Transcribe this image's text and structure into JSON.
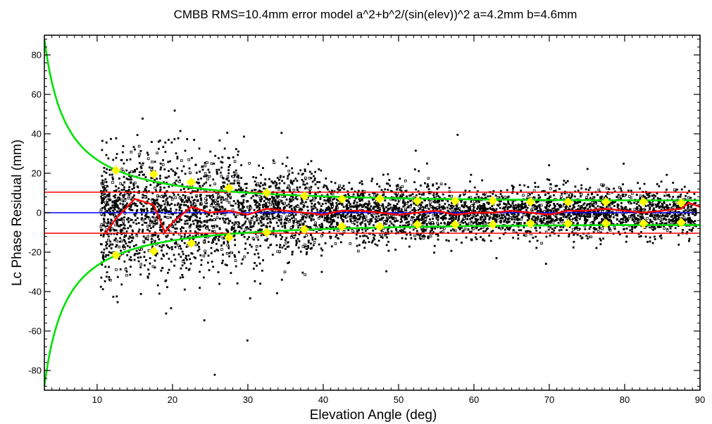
{
  "chart_data": {
    "type": "scatter",
    "title": "CMBB RMS=10.4mm error model a^2+b^2/(sin(elev))^2 a=4.2mm b=4.6mm",
    "xlabel": "Elevation Angle (deg)",
    "ylabel": "Lc Phase Residual (mm)",
    "xlim": [
      3,
      90
    ],
    "ylim": [
      -90,
      90
    ],
    "x_ticks": [
      10,
      20,
      30,
      40,
      50,
      60,
      70,
      80,
      90
    ],
    "y_ticks": [
      -80,
      -60,
      -40,
      -20,
      0,
      20,
      40,
      60,
      80
    ],
    "grid": false,
    "colors": {
      "residual_points": "#000000",
      "zero_line": "#0000ff",
      "rms_lines": "#ff0000",
      "mean_curve": "#ff0000",
      "error_model_curve": "#00e000",
      "binned_rms_markers": "#ffff00"
    },
    "series": [
      {
        "kind": "horizontal_line",
        "y": 0,
        "color": "#0000ff"
      },
      {
        "kind": "horizontal_line",
        "y": 10.4,
        "color": "#ff0000"
      },
      {
        "kind": "horizontal_line",
        "y": -10.4,
        "color": "#ff0000"
      },
      {
        "kind": "error_model_envelope",
        "a_mm": 4.2,
        "b_mm": 4.6,
        "color": "#00e000"
      },
      {
        "kind": "binned_mean_line",
        "color": "#ff0000",
        "x": [
          11,
          12.5,
          15,
          17.5,
          19,
          20,
          22.5,
          25,
          27.5,
          30,
          32.5,
          35,
          37.5,
          40,
          42.5,
          45,
          47.5,
          50,
          52.5,
          55,
          57.5,
          60,
          62.5,
          65,
          67.5,
          70,
          72.5,
          75,
          77.5,
          80,
          82.5,
          85,
          87.5,
          88.5,
          90
        ],
        "y": [
          -11,
          -3,
          7,
          4,
          -10,
          -5,
          3,
          0,
          1,
          -1,
          2,
          1,
          0,
          -1,
          1,
          1,
          0,
          -1,
          0,
          1,
          -1,
          0,
          0,
          1,
          0,
          -1,
          1,
          1,
          2,
          1,
          0,
          1,
          2,
          5,
          3
        ]
      },
      {
        "kind": "binned_rms_markers",
        "color": "#ffff00",
        "x": [
          12.5,
          17.5,
          22.5,
          27.5,
          32.5,
          37.5,
          42.5,
          47.5,
          52.5,
          57.5,
          62.5,
          67.5,
          72.5,
          77.5,
          82.5,
          87.5
        ],
        "y": [
          21.5,
          19.5,
          15.5,
          12.5,
          10,
          8.5,
          7,
          7,
          6,
          6,
          6,
          5.5,
          5.5,
          5.5,
          5.5,
          5
        ]
      },
      {
        "kind": "residual_scatter",
        "color": "#000000",
        "x_range": [
          10.5,
          89.5
        ],
        "note_points": "dense cloud of individual residuals; spread largest near 15-20 deg"
      }
    ]
  }
}
